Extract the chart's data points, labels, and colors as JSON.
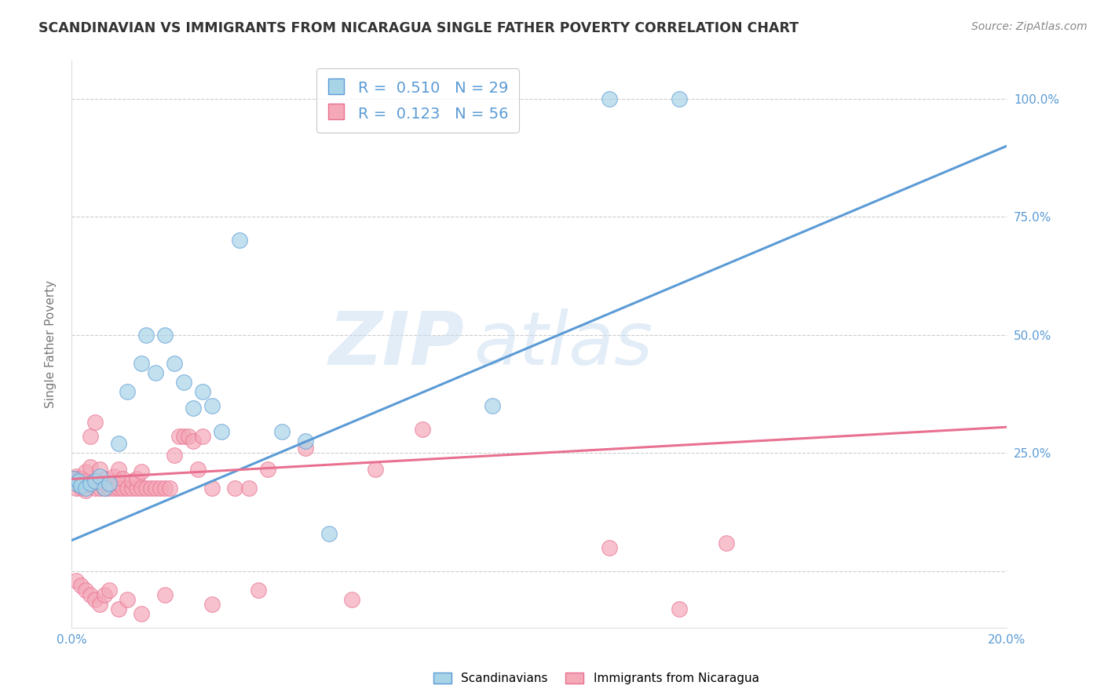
{
  "title": "SCANDINAVIAN VS IMMIGRANTS FROM NICARAGUA SINGLE FATHER POVERTY CORRELATION CHART",
  "source": "Source: ZipAtlas.com",
  "ylabel": "Single Father Poverty",
  "xlim": [
    0.0,
    0.2
  ],
  "ylim": [
    -0.12,
    1.08
  ],
  "ytick_values": [
    0.0,
    0.25,
    0.5,
    0.75,
    1.0
  ],
  "ytick_labels_right": [
    "",
    "25.0%",
    "50.0%",
    "75.0%",
    "100.0%"
  ],
  "xtick_values": [
    0.0,
    0.05,
    0.1,
    0.15,
    0.2
  ],
  "xtick_labels": [
    "0.0%",
    "",
    "",
    "",
    "20.0%"
  ],
  "color_blue": "#A8D4E8",
  "color_pink": "#F4A8B8",
  "line_color_blue": "#5B9BD5",
  "line_color_pink": "#E87090",
  "watermark_zip": "ZIP",
  "watermark_atlas": "atlas",
  "legend_label1": "Scandinavians",
  "legend_label2": "Immigrants from Nicaragua",
  "blue_scatter": [
    [
      0.0005,
      0.195
    ],
    [
      0.001,
      0.185
    ],
    [
      0.0015,
      0.19
    ],
    [
      0.002,
      0.18
    ],
    [
      0.003,
      0.175
    ],
    [
      0.004,
      0.185
    ],
    [
      0.005,
      0.19
    ],
    [
      0.006,
      0.2
    ],
    [
      0.007,
      0.175
    ],
    [
      0.008,
      0.185
    ],
    [
      0.01,
      0.27
    ],
    [
      0.012,
      0.38
    ],
    [
      0.015,
      0.44
    ],
    [
      0.016,
      0.5
    ],
    [
      0.018,
      0.42
    ],
    [
      0.02,
      0.5
    ],
    [
      0.022,
      0.44
    ],
    [
      0.024,
      0.4
    ],
    [
      0.026,
      0.345
    ],
    [
      0.028,
      0.38
    ],
    [
      0.03,
      0.35
    ],
    [
      0.032,
      0.295
    ],
    [
      0.036,
      0.7
    ],
    [
      0.045,
      0.295
    ],
    [
      0.05,
      0.275
    ],
    [
      0.055,
      0.08
    ],
    [
      0.09,
      0.35
    ],
    [
      0.115,
      1.0
    ],
    [
      0.13,
      1.0
    ]
  ],
  "pink_scatter": [
    [
      0.0005,
      0.195
    ],
    [
      0.001,
      0.175
    ],
    [
      0.001,
      0.2
    ],
    [
      0.0015,
      0.195
    ],
    [
      0.002,
      0.175
    ],
    [
      0.002,
      0.195
    ],
    [
      0.0025,
      0.19
    ],
    [
      0.003,
      0.17
    ],
    [
      0.003,
      0.21
    ],
    [
      0.004,
      0.22
    ],
    [
      0.004,
      0.285
    ],
    [
      0.005,
      0.19
    ],
    [
      0.005,
      0.175
    ],
    [
      0.005,
      0.315
    ],
    [
      0.006,
      0.175
    ],
    [
      0.006,
      0.19
    ],
    [
      0.006,
      0.215
    ],
    [
      0.007,
      0.175
    ],
    [
      0.007,
      0.185
    ],
    [
      0.007,
      0.195
    ],
    [
      0.008,
      0.175
    ],
    [
      0.008,
      0.185
    ],
    [
      0.009,
      0.175
    ],
    [
      0.009,
      0.2
    ],
    [
      0.01,
      0.175
    ],
    [
      0.01,
      0.185
    ],
    [
      0.01,
      0.215
    ],
    [
      0.011,
      0.175
    ],
    [
      0.011,
      0.195
    ],
    [
      0.012,
      0.175
    ],
    [
      0.013,
      0.175
    ],
    [
      0.013,
      0.19
    ],
    [
      0.014,
      0.175
    ],
    [
      0.014,
      0.195
    ],
    [
      0.015,
      0.175
    ],
    [
      0.015,
      0.21
    ],
    [
      0.016,
      0.175
    ],
    [
      0.017,
      0.175
    ],
    [
      0.018,
      0.175
    ],
    [
      0.019,
      0.175
    ],
    [
      0.02,
      0.175
    ],
    [
      0.021,
      0.175
    ],
    [
      0.022,
      0.245
    ],
    [
      0.023,
      0.285
    ],
    [
      0.024,
      0.285
    ],
    [
      0.025,
      0.285
    ],
    [
      0.026,
      0.275
    ],
    [
      0.027,
      0.215
    ],
    [
      0.028,
      0.285
    ],
    [
      0.03,
      0.175
    ],
    [
      0.035,
      0.175
    ],
    [
      0.038,
      0.175
    ],
    [
      0.042,
      0.215
    ],
    [
      0.05,
      0.26
    ],
    [
      0.065,
      0.215
    ],
    [
      0.075,
      0.3
    ],
    [
      0.115,
      0.05
    ],
    [
      0.14,
      0.06
    ],
    [
      0.001,
      -0.02
    ],
    [
      0.002,
      -0.03
    ],
    [
      0.003,
      -0.04
    ],
    [
      0.004,
      -0.05
    ],
    [
      0.005,
      -0.06
    ],
    [
      0.006,
      -0.07
    ],
    [
      0.007,
      -0.05
    ],
    [
      0.008,
      -0.04
    ],
    [
      0.01,
      -0.08
    ],
    [
      0.012,
      -0.06
    ],
    [
      0.015,
      -0.09
    ],
    [
      0.02,
      -0.05
    ],
    [
      0.03,
      -0.07
    ],
    [
      0.04,
      -0.04
    ],
    [
      0.06,
      -0.06
    ],
    [
      0.13,
      -0.08
    ]
  ],
  "blue_line_x": [
    0.0,
    0.2
  ],
  "blue_line_y": [
    0.065,
    0.9
  ],
  "pink_line_x": [
    0.0,
    0.2
  ],
  "pink_line_y": [
    0.195,
    0.305
  ],
  "grid_color": "#CCCCCC",
  "background_color": "#FFFFFF",
  "tick_color": "#5B9BD5",
  "axis_label_color": "#777777"
}
